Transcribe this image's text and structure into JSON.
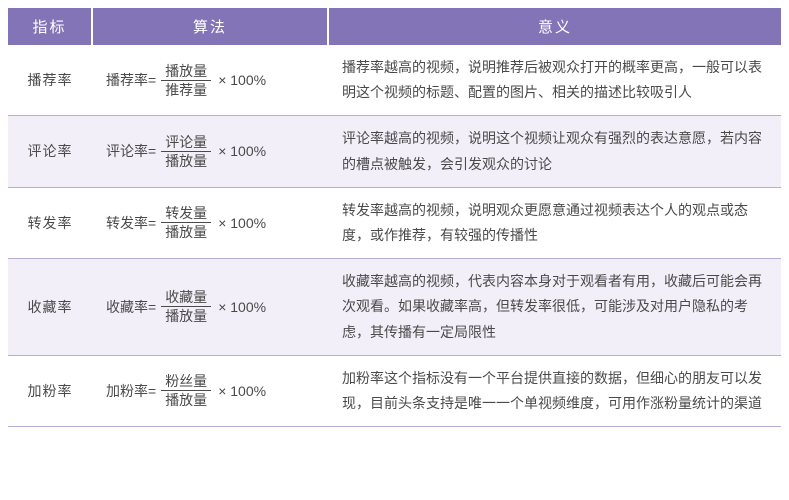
{
  "colors": {
    "header_bg": "#8374b8",
    "header_text": "#ffffff",
    "row_alt_bg": "#f2eff8",
    "row_bg": "#ffffff",
    "border": "#b8add6",
    "text": "#4a4a4a"
  },
  "typography": {
    "header_fontsize": 15,
    "cell_fontsize": 14,
    "line_height": 1.75
  },
  "headers": {
    "metric": "指标",
    "formula": "算法",
    "meaning": "意义"
  },
  "suffix": "× 100%",
  "rows": [
    {
      "metric": "播荐率",
      "lhs": "播荐率=",
      "numerator": "播放量",
      "denominator": "推荐量",
      "meaning": "播荐率越高的视频，说明推荐后被观众打开的概率更高，一般可以表明这个视频的标题、配置的图片、相关的描述比较吸引人"
    },
    {
      "metric": "评论率",
      "lhs": "评论率=",
      "numerator": "评论量",
      "denominator": "播放量",
      "meaning": "评论率越高的视频，说明这个视频让观众有强烈的表达意愿，若内容的槽点被触发，会引发观众的讨论"
    },
    {
      "metric": "转发率",
      "lhs": "转发率=",
      "numerator": "转发量",
      "denominator": "播放量",
      "meaning": "转发率越高的视频，说明观众更愿意通过视频表达个人的观点或态度，或作推荐，有较强的传播性"
    },
    {
      "metric": "收藏率",
      "lhs": "收藏率=",
      "numerator": "收藏量",
      "denominator": "播放量",
      "meaning": "收藏率越高的视频，代表内容本身对于观看者有用，收藏后可能会再次观看。如果收藏率高，但转发率很低，可能涉及对用户隐私的考虑，其传播有一定局限性"
    },
    {
      "metric": "加粉率",
      "lhs": "加粉率=",
      "numerator": "粉丝量",
      "denominator": "播放量",
      "meaning": "加粉率这个指标没有一个平台提供直接的数据，但细心的朋友可以发现，目前头条支持是唯一一个单视频维度，可用作涨粉量统计的渠道"
    }
  ]
}
